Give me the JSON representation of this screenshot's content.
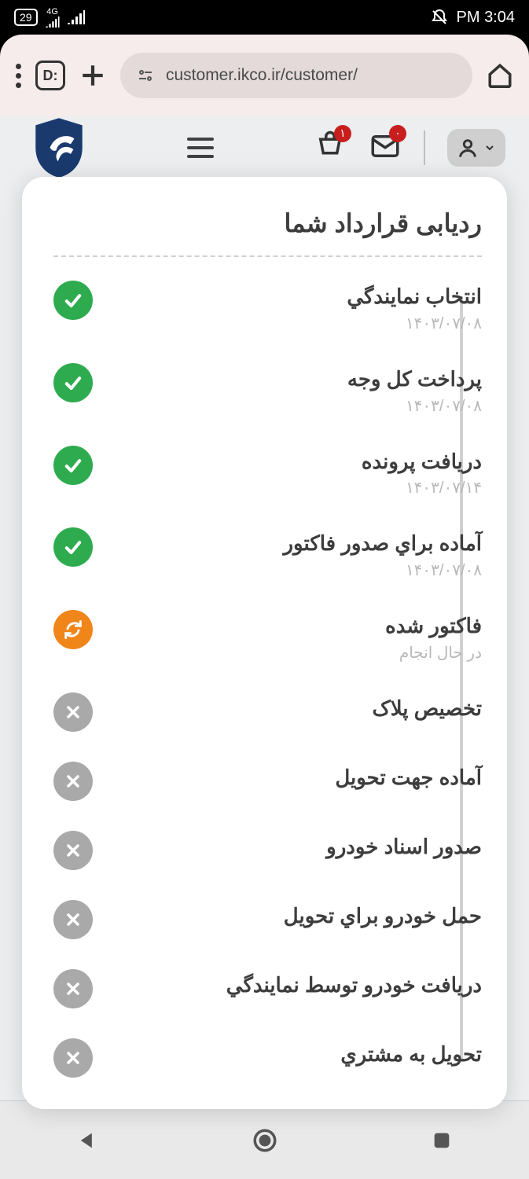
{
  "status": {
    "time": "3:04 PM",
    "battery": "29",
    "network_label": "4G"
  },
  "browser": {
    "url": "customer.ikco.ir/customer/"
  },
  "header": {
    "mail_badge": "۰",
    "cart_badge": "۱"
  },
  "modal": {
    "title": "ردیابی قرارداد شما",
    "steps": [
      {
        "title": "انتخاب نمايندگي",
        "date": "۱۴۰۳/۰۷/۰۸",
        "status": "done"
      },
      {
        "title": "پرداخت کل وجه",
        "date": "۱۴۰۳/۰۷/۰۸",
        "status": "done"
      },
      {
        "title": "دریافت پرونده",
        "date": "۱۴۰۳/۰۷/۱۴",
        "status": "done"
      },
      {
        "title": "آماده براي صدور فاکتور",
        "date": "۱۴۰۳/۰۷/۰۸",
        "status": "done"
      },
      {
        "title": "فاکتور شده",
        "date": "در حال انجام",
        "status": "progress"
      },
      {
        "title": "تخصیص پلاک",
        "date": "",
        "status": "pending"
      },
      {
        "title": "آماده جهت تحویل",
        "date": "",
        "status": "pending"
      },
      {
        "title": "صدور اسناد خودرو",
        "date": "",
        "status": "pending"
      },
      {
        "title": "حمل خودرو براي تحویل",
        "date": "",
        "status": "pending"
      },
      {
        "title": "دریافت خودرو توسط نمايندگي",
        "date": "",
        "status": "pending"
      },
      {
        "title": "تحویل به مشتري",
        "date": "",
        "status": "pending"
      }
    ]
  },
  "colors": {
    "done": "#2eab4f",
    "progress": "#f0851a",
    "pending": "#a9a9a9",
    "text_primary": "#3d3d3d",
    "text_muted": "#b8b8b8",
    "modal_bg": "#ffffff",
    "page_bg": "#eceef0",
    "chrome_bg": "#f6eceb"
  }
}
